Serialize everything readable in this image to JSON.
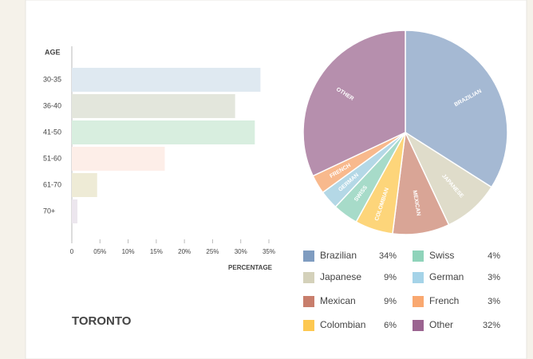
{
  "heading": "TORONTO",
  "chart_data": [
    {
      "type": "bar",
      "orientation": "horizontal",
      "ylabel": "AGE",
      "xlabel": "PERCENTAGE",
      "categories": [
        "30-35",
        "36-40",
        "41-50",
        "51-60",
        "61-70",
        "70+"
      ],
      "values": [
        33.5,
        29,
        32.5,
        16.5,
        4.5,
        1
      ],
      "colors": [
        "#dfe9f1",
        "#e3e6dc",
        "#d8eedf",
        "#fdeee8",
        "#eeebd6",
        "#ece6ee"
      ],
      "xlim": [
        0,
        35
      ],
      "xticks": [
        0,
        {
          "value": 5,
          "label": "05%"
        },
        {
          "value": 10,
          "label": "10%"
        },
        {
          "value": 15,
          "label": "15%"
        },
        {
          "value": 20,
          "label": "20%"
        },
        {
          "value": 25,
          "label": "25%"
        },
        {
          "value": 30,
          "label": "30%"
        },
        {
          "value": 35,
          "label": "35%"
        }
      ]
    },
    {
      "type": "pie",
      "categories": [
        "Brazilian",
        "Japanese",
        "Mexican",
        "Colombian",
        "Swiss",
        "German",
        "French",
        "Other"
      ],
      "slice_labels": [
        "BRAZILIAN",
        "JAPANESE",
        "MEXICAN",
        "COLOMBIAN",
        "SWISS",
        "GERMAN",
        "FRENCH",
        "OTHER"
      ],
      "values": [
        34,
        9,
        9,
        6,
        4,
        3,
        3,
        32
      ],
      "value_labels": [
        "34%",
        "9%",
        "9%",
        "6%",
        "4%",
        "3%",
        "3%",
        "32%"
      ],
      "colors": [
        "#a5b9d3",
        "#dfdcca",
        "#d9a596",
        "#fdd57a",
        "#a7dbc9",
        "#b4d8e6",
        "#f8b98d",
        "#b68fad"
      ],
      "legend_colors": [
        "#7f9cc0",
        "#d4d1ba",
        "#c87e6c",
        "#fdc850",
        "#8fd3ba",
        "#a5d3e8",
        "#f9a870",
        "#9b6490"
      ]
    }
  ]
}
